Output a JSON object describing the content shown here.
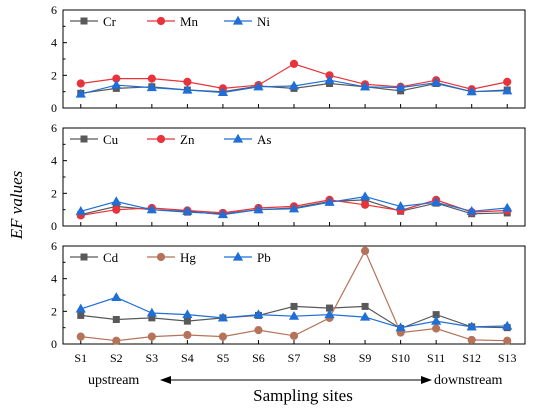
{
  "chart_data": {
    "type": "line",
    "x_title": "Sampling sites",
    "y_title": "EF values",
    "categories": [
      "S1",
      "S2",
      "S3",
      "S4",
      "S5",
      "S6",
      "S7",
      "S8",
      "S9",
      "S10",
      "S11",
      "S12",
      "S13"
    ],
    "annotations": {
      "left": "upstream",
      "right": "downstream"
    },
    "panels": [
      {
        "ylim": [
          0,
          6
        ],
        "yticks": [
          0,
          2,
          4,
          6
        ],
        "legend": "top-left",
        "series": [
          {
            "name": "Cr",
            "color": "#595959",
            "marker": "square",
            "values": [
              0.9,
              1.2,
              1.3,
              1.1,
              1.0,
              1.35,
              1.2,
              1.5,
              1.3,
              1.05,
              1.5,
              1.0,
              1.1
            ]
          },
          {
            "name": "Mn",
            "color": "#e8333a",
            "marker": "circle",
            "values": [
              1.5,
              1.8,
              1.8,
              1.6,
              1.2,
              1.4,
              2.7,
              2.0,
              1.45,
              1.3,
              1.7,
              1.15,
              1.6
            ]
          },
          {
            "name": "Ni",
            "color": "#1f6fd6",
            "marker": "triangle",
            "values": [
              0.85,
              1.4,
              1.25,
              1.1,
              0.95,
              1.3,
              1.35,
              1.7,
              1.3,
              1.25,
              1.55,
              1.0,
              1.05
            ]
          }
        ]
      },
      {
        "ylim": [
          0,
          6
        ],
        "yticks": [
          0,
          2,
          4,
          6
        ],
        "legend": "top-left",
        "series": [
          {
            "name": "Cu",
            "color": "#595959",
            "marker": "square",
            "values": [
              0.7,
              1.2,
              1.0,
              0.85,
              0.75,
              1.0,
              1.1,
              1.5,
              1.6,
              0.9,
              1.4,
              0.75,
              0.8
            ]
          },
          {
            "name": "Zn",
            "color": "#e8333a",
            "marker": "circle",
            "values": [
              0.65,
              1.0,
              1.1,
              0.95,
              0.8,
              1.1,
              1.2,
              1.6,
              1.3,
              0.95,
              1.6,
              0.85,
              0.95
            ]
          },
          {
            "name": "As",
            "color": "#1f6fd6",
            "marker": "triangle",
            "values": [
              0.9,
              1.5,
              1.0,
              0.9,
              0.7,
              1.0,
              1.05,
              1.45,
              1.8,
              1.2,
              1.45,
              0.9,
              1.1
            ]
          }
        ]
      },
      {
        "ylim": [
          0,
          6
        ],
        "yticks": [
          0,
          2,
          4,
          6
        ],
        "legend": "top-left",
        "series": [
          {
            "name": "Cd",
            "color": "#595959",
            "marker": "square",
            "values": [
              1.75,
              1.5,
              1.6,
              1.4,
              1.6,
              1.75,
              2.3,
              2.2,
              2.3,
              0.95,
              1.8,
              1.05,
              1.0
            ]
          },
          {
            "name": "Hg",
            "color": "#b5735a",
            "marker": "circle",
            "values": [
              0.45,
              0.2,
              0.45,
              0.55,
              0.45,
              0.85,
              0.5,
              1.6,
              5.7,
              0.7,
              0.95,
              0.25,
              0.2
            ]
          },
          {
            "name": "Pb",
            "color": "#1f6fd6",
            "marker": "triangle",
            "values": [
              2.15,
              2.85,
              1.9,
              1.8,
              1.6,
              1.8,
              1.7,
              1.8,
              1.65,
              1.0,
              1.4,
              1.05,
              1.1
            ]
          }
        ]
      }
    ]
  }
}
